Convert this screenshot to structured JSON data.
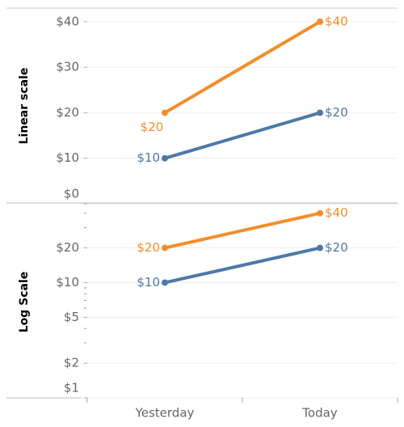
{
  "chart_data": [
    {
      "type": "line",
      "y_label": "Linear scale",
      "log": false,
      "categories": [
        "Yesterday",
        "Today"
      ],
      "ylim": [
        0,
        43
      ],
      "yticks": [
        {
          "value": 0,
          "label": "$0"
        },
        {
          "value": 10,
          "label": "$10"
        },
        {
          "value": 20,
          "label": "$20"
        },
        {
          "value": 30,
          "label": "$30"
        },
        {
          "value": 40,
          "label": "$40"
        }
      ],
      "grid": true,
      "series": [
        {
          "color": "#4e79a7",
          "values": [
            10,
            20
          ],
          "value_labels": [
            "$10",
            "$20"
          ]
        },
        {
          "color": "#f28e2b",
          "values": [
            20,
            40
          ],
          "value_labels": [
            "$20",
            "$40"
          ]
        }
      ]
    },
    {
      "type": "line",
      "y_label": "Log Scale",
      "log": true,
      "categories": [
        "Yesterday",
        "Today"
      ],
      "ylim": [
        1,
        46
      ],
      "yticks": [
        {
          "value": 1,
          "label": "$1"
        },
        {
          "value": 2,
          "label": "$2"
        },
        {
          "value": 5,
          "label": "$5"
        },
        {
          "value": 10,
          "label": "$10"
        },
        {
          "value": 20,
          "label": "$20"
        }
      ],
      "minor_yticks": [
        3,
        4,
        6,
        7,
        8,
        9,
        30,
        40
      ],
      "grid": true,
      "series": [
        {
          "color": "#4e79a7",
          "values": [
            10,
            20
          ],
          "value_labels": [
            "$10",
            "$20"
          ]
        },
        {
          "color": "#f28e2b",
          "values": [
            20,
            40
          ],
          "value_labels": [
            "$20",
            "$40"
          ]
        }
      ]
    }
  ]
}
